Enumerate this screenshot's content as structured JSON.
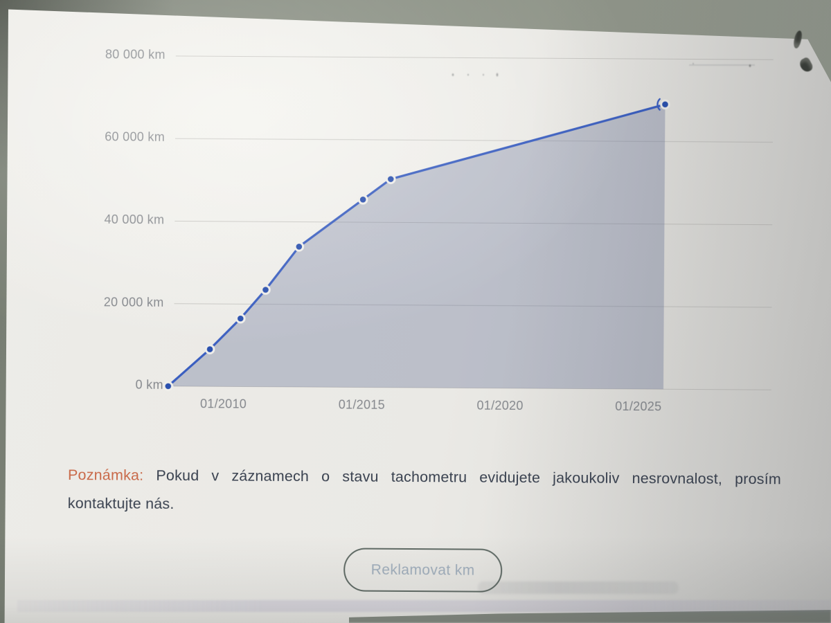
{
  "note": {
    "label": "Poznámka:",
    "line1": "Pokud v záznamech o stavu tachometru evidujete jakoukoliv nesrovnalost, prosím",
    "line2": "kontaktujte nás."
  },
  "button": {
    "label": "Reklamovat km"
  },
  "chart_data": {
    "type": "line",
    "title": "",
    "xlabel": "",
    "ylabel": "",
    "y_ticks": [
      {
        "value": 0,
        "label": "0 km"
      },
      {
        "value": 20000,
        "label": "20 000 km"
      },
      {
        "value": 40000,
        "label": "40 000 km"
      },
      {
        "value": 60000,
        "label": "60 000 km"
      },
      {
        "value": 80000,
        "label": "80 000 km"
      }
    ],
    "x_ticks": [
      {
        "year": 2010,
        "label": "01/2010"
      },
      {
        "year": 2015,
        "label": "01/2015"
      },
      {
        "year": 2020,
        "label": "01/2020"
      },
      {
        "year": 2025,
        "label": "01/2025"
      }
    ],
    "xlim": [
      2008.2,
      2029.8
    ],
    "ylim": [
      0,
      80000
    ],
    "grid": "horizontal-only",
    "legend": false,
    "area_fill": true,
    "series": [
      {
        "name": "odometer-km",
        "last_point_ring": true,
        "points": [
          [
            2008.0,
            0
          ],
          [
            2009.5,
            9000
          ],
          [
            2010.6,
            16500
          ],
          [
            2011.5,
            23500
          ],
          [
            2012.7,
            34000
          ],
          [
            2015.0,
            45500
          ],
          [
            2016.0,
            50500
          ],
          [
            2025.9,
            69000
          ]
        ]
      }
    ],
    "colors": {
      "line": "#3a5ec0",
      "point": "#2a50ae",
      "point_halo": "#efeeea",
      "area": "rgba(104,117,152,0.36)",
      "grid": "#bcbbb7",
      "tick_text": "#85888d"
    }
  }
}
